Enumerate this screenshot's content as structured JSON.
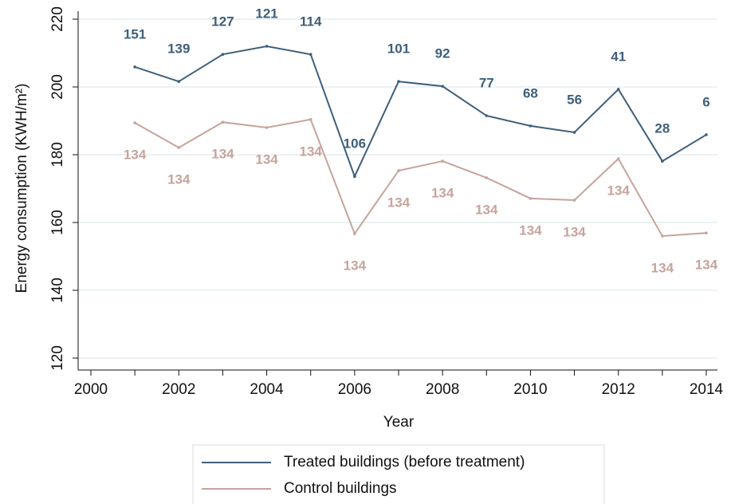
{
  "chart_data": {
    "type": "line",
    "x": [
      2001,
      2002,
      2003,
      2004,
      2005,
      2006,
      2007,
      2008,
      2009,
      2010,
      2011,
      2012,
      2013,
      2014
    ],
    "series": [
      {
        "name": "Treated buildings (before treatment)",
        "color": "#3e5f7a",
        "values": [
          205.9,
          201.6,
          209.6,
          212,
          209.6,
          173.6,
          201.6,
          200.2,
          191.5,
          188.5,
          186.6,
          199.3,
          178.1,
          185.9
        ],
        "point_labels": [
          151,
          139,
          127,
          121,
          114,
          106,
          101,
          92,
          77,
          68,
          56,
          41,
          28,
          6
        ],
        "label_side": "above"
      },
      {
        "name": "Control buildings",
        "color": "#c7a39b",
        "values": [
          189.4,
          182.1,
          189.6,
          188,
          190.4,
          156.7,
          175.3,
          178.1,
          173.2,
          167.1,
          166.6,
          178.8,
          156,
          156.9
        ],
        "point_labels": [
          134,
          134,
          134,
          134,
          134,
          134,
          134,
          134,
          134,
          134,
          134,
          134,
          134,
          134
        ],
        "label_side": "below"
      }
    ],
    "x_label": "Year",
    "y_label": "Energy consumption (KWH/m²)",
    "xlim": [
      2000,
      2014
    ],
    "xticks": [
      2000,
      2002,
      2004,
      2006,
      2008,
      2010,
      2012,
      2014
    ],
    "xminorticks": [
      2001,
      2003,
      2005,
      2007,
      2009,
      2011,
      2013
    ],
    "ylim": [
      120,
      220
    ],
    "yticks": [
      120,
      140,
      160,
      180,
      200,
      220
    ],
    "grid": true,
    "legend": "bottom"
  }
}
